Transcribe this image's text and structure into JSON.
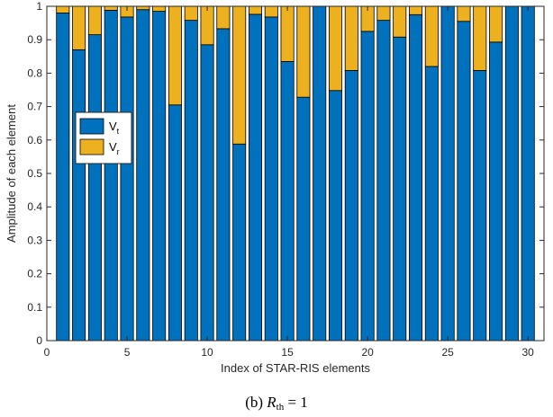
{
  "chart_data": {
    "type": "bar",
    "stacked": true,
    "xlabel": "Index of STAR-RIS elements",
    "ylabel": "Amplitude of each element",
    "xlim": [
      0,
      31
    ],
    "ylim": [
      0,
      1
    ],
    "xticks": [
      0,
      5,
      10,
      15,
      20,
      25,
      30
    ],
    "yticks": [
      0,
      0.1,
      0.2,
      0.3,
      0.4,
      0.5,
      0.6,
      0.7,
      0.8,
      0.9,
      1
    ],
    "grid": false,
    "legend_position": "left-middle",
    "x": [
      1,
      2,
      3,
      4,
      5,
      6,
      7,
      8,
      9,
      10,
      11,
      12,
      13,
      14,
      15,
      16,
      17,
      18,
      19,
      20,
      21,
      22,
      23,
      24,
      25,
      26,
      27,
      28,
      29,
      30
    ],
    "series": [
      {
        "name": "V_t",
        "legend_main": "V",
        "legend_sub": "t",
        "color": "#0072BD",
        "values": [
          0.98,
          0.87,
          0.915,
          0.988,
          0.968,
          0.99,
          0.985,
          0.705,
          0.958,
          0.885,
          0.933,
          0.588,
          0.976,
          0.968,
          0.835,
          0.728,
          1.0,
          0.748,
          0.808,
          0.925,
          0.958,
          0.908,
          0.975,
          0.82,
          1.0,
          0.955,
          0.808,
          0.893,
          1.0,
          1.0
        ]
      },
      {
        "name": "V_r",
        "legend_main": "V",
        "legend_sub": "r",
        "color": "#EDB120",
        "values": [
          0.02,
          0.13,
          0.085,
          0.012,
          0.032,
          0.01,
          0.015,
          0.295,
          0.042,
          0.115,
          0.067,
          0.412,
          0.024,
          0.032,
          0.165,
          0.272,
          0.0,
          0.252,
          0.192,
          0.075,
          0.042,
          0.092,
          0.025,
          0.18,
          0.0,
          0.045,
          0.192,
          0.107,
          0.0,
          0.0
        ]
      }
    ]
  },
  "caption": {
    "prefix": "(b)",
    "var": "R",
    "sub": "th",
    "suffix": "= 1"
  }
}
